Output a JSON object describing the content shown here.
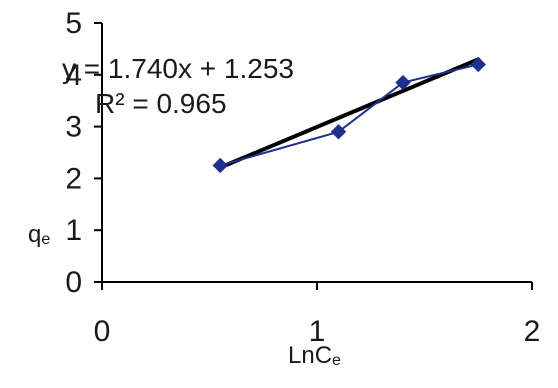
{
  "chart_data": {
    "type": "scatter",
    "xlabel": "LnCe",
    "xlabel_main": "LnC",
    "xlabel_sub": "e",
    "ylabel": "qe",
    "ylabel_main": "q",
    "ylabel_sub": "e",
    "xlim": [
      0,
      2
    ],
    "ylim": [
      0,
      5
    ],
    "x_ticks": [
      "0",
      "1",
      "2"
    ],
    "y_ticks": [
      "0",
      "1",
      "2",
      "3",
      "4",
      "5"
    ],
    "grid": false,
    "series": [
      {
        "x": [
          0.55,
          1.1,
          1.4,
          1.75
        ],
        "y": [
          2.25,
          2.9,
          3.85,
          4.2
        ],
        "color": "#1f2f8f",
        "marker": "diamond"
      }
    ],
    "trendline": {
      "type": "linear",
      "slope": 1.74,
      "intercept": 1.253,
      "x_range": [
        0.55,
        1.75
      ],
      "color": "#000000",
      "equation": "y = 1.740x + 1.253",
      "r2": "R² = 0.965"
    }
  }
}
